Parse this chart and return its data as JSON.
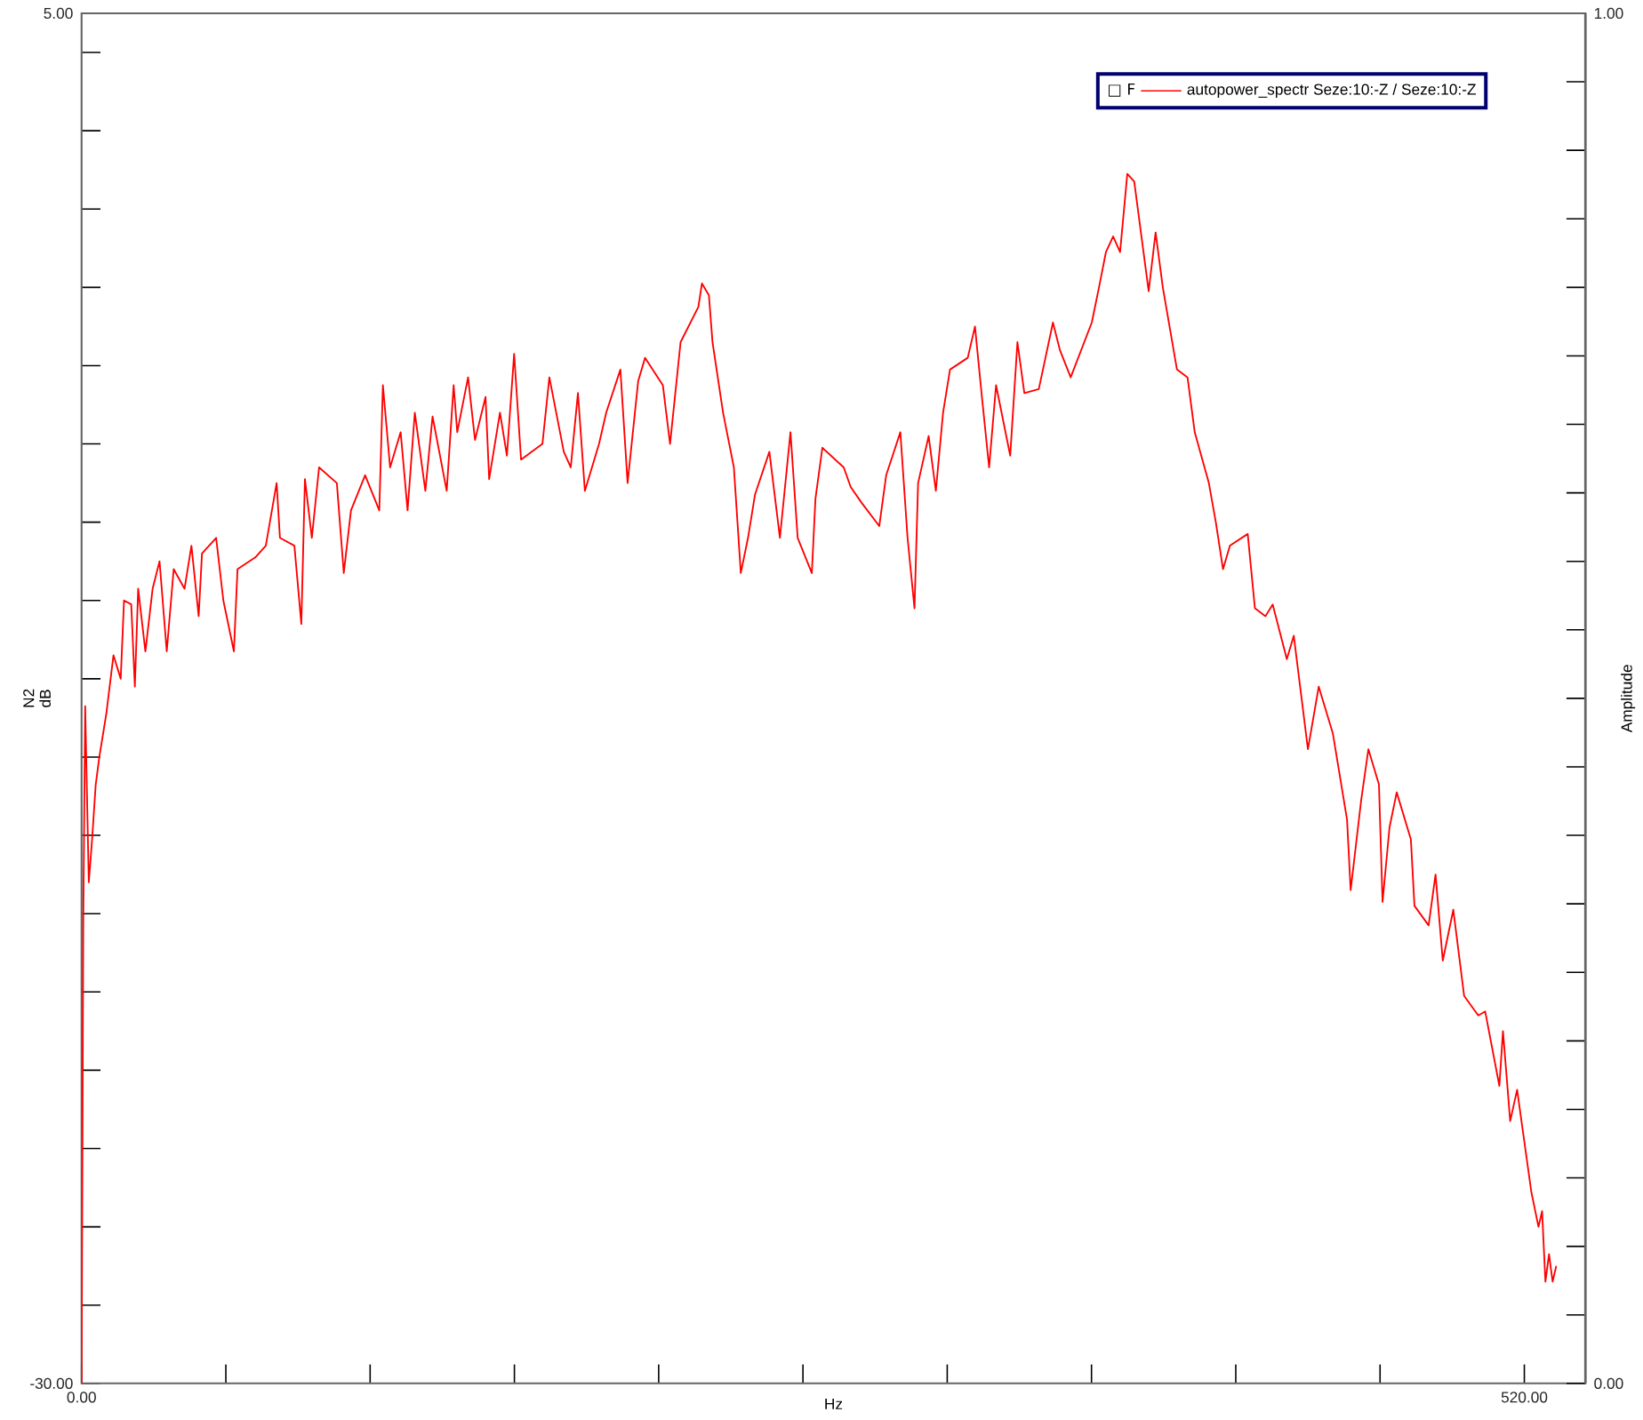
{
  "chart_data": {
    "type": "line",
    "xlabel": "Hz",
    "ylabel": "N2 dB",
    "y2label": "Amplitude",
    "legend_title": "□ F",
    "legend": "top right",
    "grid": false,
    "marker": "none",
    "line_style": "solid",
    "xlim": [
      0,
      542
    ],
    "ylim": [
      -30,
      5
    ],
    "y2lim": [
      0,
      1
    ],
    "xticks": [
      {
        "value": 0,
        "label": "0.00"
      },
      {
        "value": 52,
        "label": null
      },
      {
        "value": 104,
        "label": null
      },
      {
        "value": 156,
        "label": null
      },
      {
        "value": 208,
        "label": null
      },
      {
        "value": 260,
        "label": null
      },
      {
        "value": 312,
        "label": null
      },
      {
        "value": 364,
        "label": null
      },
      {
        "value": 416,
        "label": null
      },
      {
        "value": 468,
        "label": null
      },
      {
        "value": 520,
        "label": "520.00"
      }
    ],
    "yticks": [
      {
        "value": -30,
        "label": "-30.00"
      },
      {
        "value": -28,
        "label": null
      },
      {
        "value": -26,
        "label": null
      },
      {
        "value": -24,
        "label": null
      },
      {
        "value": -22,
        "label": null
      },
      {
        "value": -20,
        "label": null
      },
      {
        "value": -18,
        "label": null
      },
      {
        "value": -16,
        "label": null
      },
      {
        "value": -14,
        "label": null
      },
      {
        "value": -12,
        "label": null
      },
      {
        "value": -10,
        "label": null
      },
      {
        "value": -8,
        "label": null
      },
      {
        "value": -6,
        "label": null
      },
      {
        "value": -4,
        "label": null
      },
      {
        "value": -2,
        "label": null
      },
      {
        "value": 0,
        "label": null
      },
      {
        "value": 2,
        "label": null
      },
      {
        "value": 4,
        "label": null
      },
      {
        "value": 5,
        "label": "5.00"
      }
    ],
    "y2ticks": [
      {
        "value": 0,
        "label": "0.00"
      },
      {
        "value": 0.05,
        "label": null
      },
      {
        "value": 0.1,
        "label": null
      },
      {
        "value": 0.15,
        "label": null
      },
      {
        "value": 0.2,
        "label": null
      },
      {
        "value": 0.25,
        "label": null
      },
      {
        "value": 0.3,
        "label": null
      },
      {
        "value": 0.35,
        "label": null
      },
      {
        "value": 0.4,
        "label": null
      },
      {
        "value": 0.45,
        "label": null
      },
      {
        "value": 0.5,
        "label": null
      },
      {
        "value": 0.55,
        "label": null
      },
      {
        "value": 0.6,
        "label": null
      },
      {
        "value": 0.65,
        "label": null
      },
      {
        "value": 0.7,
        "label": null
      },
      {
        "value": 0.75,
        "label": null
      },
      {
        "value": 0.8,
        "label": null
      },
      {
        "value": 0.85,
        "label": null
      },
      {
        "value": 0.9,
        "label": null
      },
      {
        "value": 0.95,
        "label": null
      },
      {
        "value": 1,
        "label": "1.00"
      }
    ],
    "x": [
      0,
      0.6,
      1.3,
      2.6,
      3.8,
      5.1,
      6.4,
      8.9,
      11.5,
      14.1,
      15.3,
      17.9,
      19.2,
      20.4,
      23.0,
      25.6,
      28.1,
      30.7,
      33.2,
      37.1,
      39.6,
      42.2,
      43.4,
      48.5,
      51.1,
      54.9,
      56.2,
      62.6,
      66.4,
      70.3,
      71.5,
      76.7,
      79.2,
      80.5,
      83.0,
      85.6,
      92.0,
      94.5,
      97.1,
      102.2,
      107.3,
      108.6,
      111.2,
      115.0,
      117.5,
      120.1,
      123.9,
      126.5,
      131.6,
      134.1,
      135.4,
      139.3,
      141.8,
      145.6,
      146.9,
      150.8,
      153.3,
      155.9,
      158.4,
      166.1,
      168.6,
      173.8,
      176.3,
      178.9,
      181.4,
      186.5,
      189.1,
      194.2,
      196.8,
      200.6,
      203.1,
      209.5,
      212.1,
      215.9,
      222.3,
      223.6,
      226.1,
      227.4,
      231.2,
      235.1,
      237.6,
      240.2,
      242.7,
      247.9,
      251.7,
      255.5,
      258.1,
      263.2,
      264.5,
      267.0,
      274.7,
      277.2,
      281.1,
      287.5,
      290.0,
      295.1,
      297.7,
      300.2,
      301.5,
      305.3,
      307.9,
      310.5,
      313.0,
      319.4,
      322.0,
      324.5,
      327.1,
      329.6,
      334.7,
      337.3,
      339.8,
      345.0,
      350.1,
      352.6,
      356.5,
      364.1,
      366.7,
      369.2,
      371.8,
      374.3,
      376.9,
      379.4,
      382.0,
      384.6,
      387.1,
      389.7,
      394.8,
      398.6,
      401.2,
      406.3,
      408.8,
      411.4,
      413.9,
      420.3,
      422.9,
      426.7,
      429.3,
      434.4,
      436.9,
      442.0,
      445.9,
      451.0,
      456.1,
      457.4,
      461.2,
      463.8,
      467.6,
      468.9,
      471.4,
      474.0,
      479.1,
      480.4,
      485.5,
      488.0,
      490.6,
      494.4,
      498.3,
      503.4,
      505.9,
      511.0,
      512.3,
      514.9,
      517.4,
      522.5,
      525.1,
      526.4,
      527.6,
      528.9,
      530.2,
      531.5
    ],
    "series": [
      {
        "name": "autopower_spectr Seze:10:-Z / Seze:10:-Z",
        "color": "#ff0000",
        "values": [
          -30.0,
          -18.3,
          -12.7,
          -17.2,
          -16.1,
          -14.7,
          -14.0,
          -12.9,
          -11.4,
          -12.0,
          -10.0,
          -10.1,
          -12.2,
          -9.7,
          -11.3,
          -9.7,
          -9.0,
          -11.3,
          -9.2,
          -9.7,
          -8.6,
          -10.4,
          -8.8,
          -8.4,
          -10.0,
          -11.3,
          -9.2,
          -8.9,
          -8.6,
          -7.0,
          -8.4,
          -8.6,
          -10.6,
          -6.9,
          -8.4,
          -6.6,
          -7.0,
          -9.3,
          -7.7,
          -6.8,
          -7.7,
          -4.5,
          -6.6,
          -5.7,
          -7.7,
          -5.2,
          -7.2,
          -5.3,
          -7.2,
          -4.5,
          -5.7,
          -4.3,
          -5.9,
          -4.8,
          -6.9,
          -5.2,
          -6.3,
          -3.7,
          -6.4,
          -6.0,
          -4.3,
          -6.2,
          -6.6,
          -4.7,
          -7.2,
          -6.0,
          -5.2,
          -4.1,
          -7.0,
          -4.4,
          -3.8,
          -4.5,
          -6.0,
          -3.4,
          -2.5,
          -1.9,
          -2.2,
          -3.4,
          -5.2,
          -6.6,
          -9.3,
          -8.4,
          -7.3,
          -6.2,
          -8.4,
          -5.7,
          -8.4,
          -9.3,
          -7.4,
          -6.1,
          -6.6,
          -7.1,
          -7.5,
          -8.1,
          -6.8,
          -5.7,
          -8.4,
          -10.2,
          -7.0,
          -5.8,
          -7.2,
          -5.2,
          -4.1,
          -3.8,
          -3.0,
          -4.8,
          -6.6,
          -4.5,
          -6.3,
          -3.4,
          -4.7,
          -4.6,
          -2.9,
          -3.6,
          -4.3,
          -2.9,
          -2.0,
          -1.1,
          -0.7,
          -1.1,
          0.9,
          0.7,
          -0.7,
          -2.1,
          -0.6,
          -2.0,
          -4.1,
          -4.3,
          -5.7,
          -7.0,
          -8.0,
          -9.2,
          -8.6,
          -8.3,
          -10.2,
          -10.4,
          -10.1,
          -11.5,
          -10.9,
          -13.8,
          -12.2,
          -13.4,
          -15.6,
          -17.4,
          -15.1,
          -13.8,
          -14.7,
          -17.7,
          -15.8,
          -14.9,
          -16.1,
          -17.8,
          -18.3,
          -17.0,
          -19.2,
          -17.9,
          -20.1,
          -20.6,
          -20.5,
          -22.4,
          -21.0,
          -23.3,
          -22.5,
          -25.1,
          -26.0,
          -25.6,
          -27.4,
          -26.7,
          -27.4,
          -27.0
        ]
      }
    ]
  }
}
